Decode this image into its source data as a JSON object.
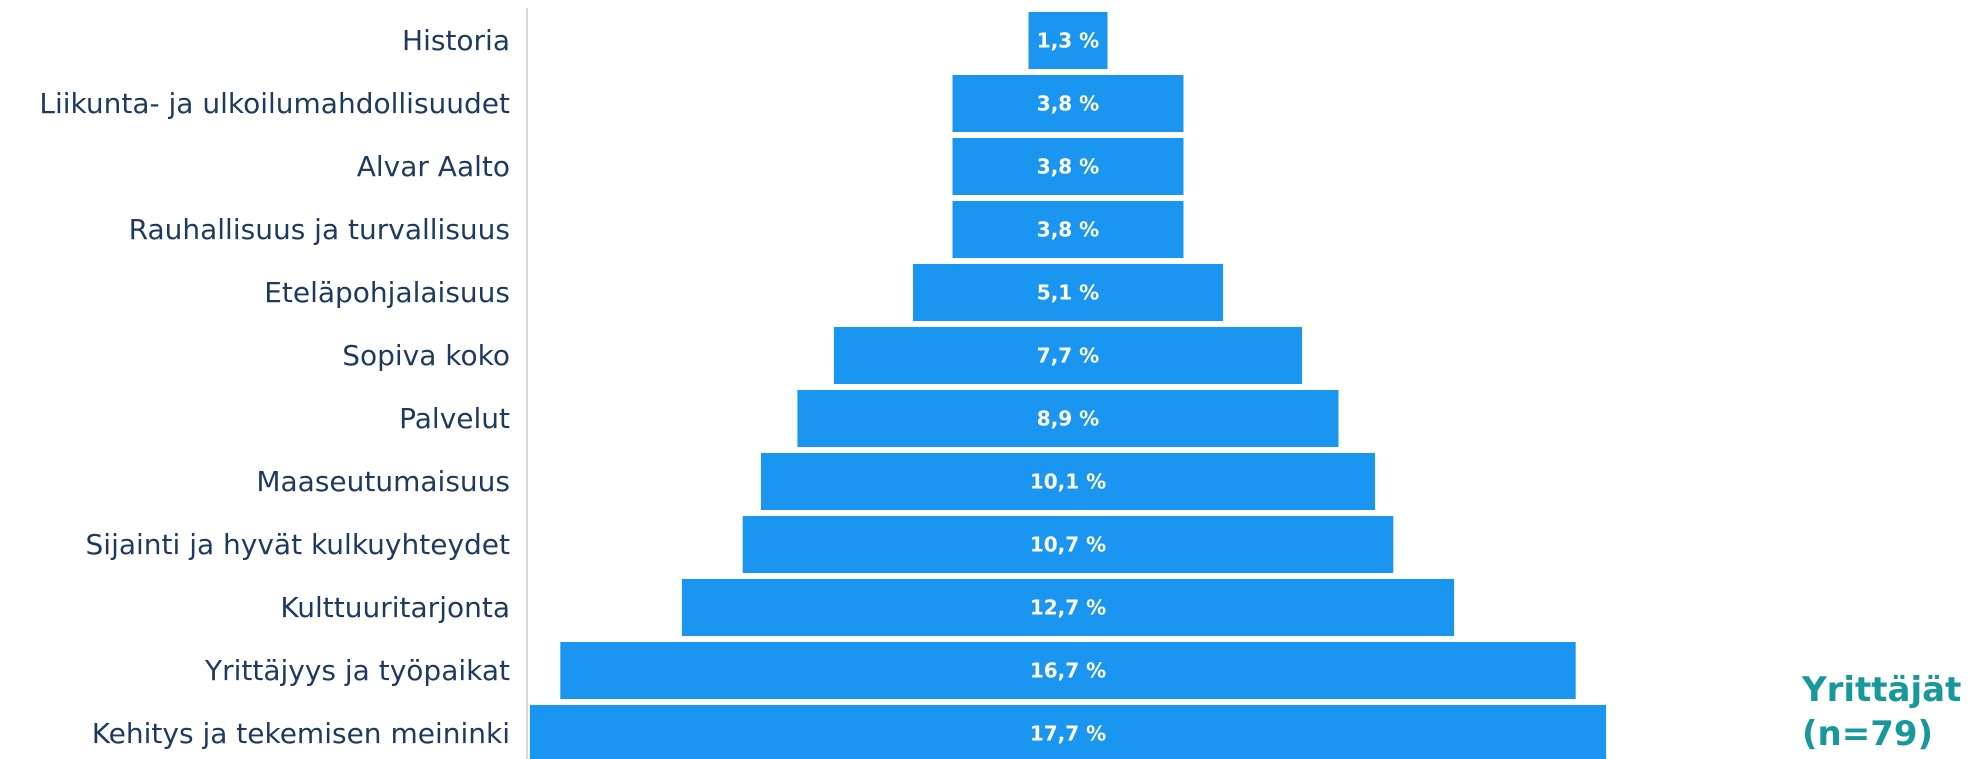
{
  "chart_data": {
    "type": "bar",
    "orientation": "horizontal",
    "layout": "centered",
    "categories": [
      "Historia",
      "Liikunta- ja ulkoilumahdollisuudet",
      "Alvar Aalto",
      "Rauhallisuus ja turvallisuus",
      "Eteläpohjalaisuus",
      "Sopiva koko",
      "Palvelut",
      "Maaseutumaisuus",
      "Sijainti ja hyvät kulkuyhteydet",
      "Kulttuuritarjonta",
      "Yrittäjyys ja työpaikat",
      "Kehitys ja tekemisen meininki"
    ],
    "values": [
      1.3,
      3.8,
      3.8,
      3.8,
      5.1,
      7.7,
      8.9,
      10.1,
      10.7,
      12.7,
      16.7,
      17.7
    ],
    "value_labels": [
      "1,3 %",
      "3,8 %",
      "3,8 %",
      "3,8 %",
      "5,1 %",
      "7,7 %",
      "8,9 %",
      "10,1 %",
      "10,7 %",
      "12,7 %",
      "16,7 %",
      "17,7 %"
    ],
    "bar_color": "#1a96f0",
    "label_color": "#1f3a5f",
    "grid": false,
    "legend": "none"
  },
  "group_label": {
    "line1": "Yrittäjät",
    "line2": "(n=79)",
    "color": "#17999c"
  }
}
